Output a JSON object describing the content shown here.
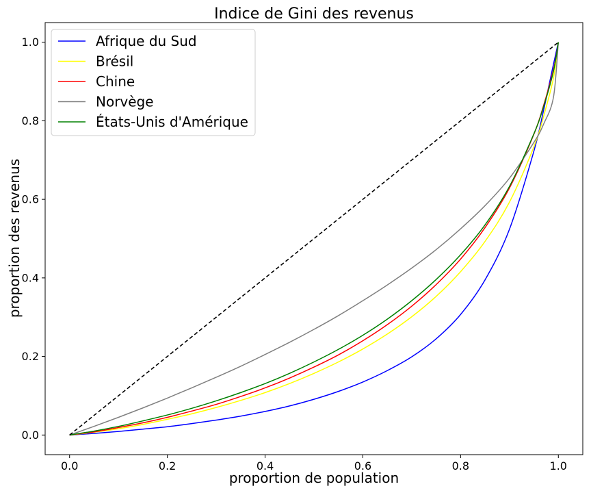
{
  "chart_data": {
    "type": "line",
    "title": "Indice de Gini des revenus",
    "xlabel": "proportion de population",
    "ylabel": "proportion des revenus",
    "xlim": [
      -0.05,
      1.05
    ],
    "ylim": [
      -0.05,
      1.05
    ],
    "xticks": [
      "0.0",
      "0.2",
      "0.4",
      "0.6",
      "0.8",
      "1.0"
    ],
    "yticks": [
      "0.0",
      "0.2",
      "0.4",
      "0.6",
      "0.8",
      "1.0"
    ],
    "grid": false,
    "legend_position": "top-left",
    "x": [
      0.0,
      0.05,
      0.1,
      0.15,
      0.2,
      0.25,
      0.3,
      0.35,
      0.4,
      0.45,
      0.5,
      0.55,
      0.6,
      0.65,
      0.7,
      0.75,
      0.8,
      0.85,
      0.9,
      0.95,
      0.97,
      0.99,
      1.0
    ],
    "series": [
      {
        "name": "Afrique du Sud",
        "color": "#0000ff",
        "values": [
          0.0,
          0.004,
          0.009,
          0.015,
          0.021,
          0.029,
          0.038,
          0.048,
          0.06,
          0.074,
          0.091,
          0.111,
          0.135,
          0.164,
          0.199,
          0.245,
          0.307,
          0.395,
          0.524,
          0.723,
          0.828,
          0.944,
          1.0
        ]
      },
      {
        "name": "Brésil",
        "color": "#ffff00",
        "values": [
          0.0,
          0.007,
          0.016,
          0.027,
          0.04,
          0.054,
          0.07,
          0.088,
          0.108,
          0.131,
          0.157,
          0.186,
          0.219,
          0.257,
          0.301,
          0.353,
          0.416,
          0.493,
          0.593,
          0.734,
          0.812,
          0.909,
          1.0
        ]
      },
      {
        "name": "Chine",
        "color": "#ff0000",
        "values": [
          0.0,
          0.008,
          0.019,
          0.031,
          0.045,
          0.061,
          0.078,
          0.098,
          0.12,
          0.145,
          0.173,
          0.204,
          0.24,
          0.281,
          0.328,
          0.383,
          0.448,
          0.528,
          0.629,
          0.766,
          0.84,
          0.93,
          1.0
        ]
      },
      {
        "name": "Norvège",
        "color": "#808080",
        "values": [
          0.0,
          0.022,
          0.045,
          0.069,
          0.094,
          0.12,
          0.147,
          0.175,
          0.205,
          0.236,
          0.269,
          0.304,
          0.342,
          0.382,
          0.425,
          0.472,
          0.525,
          0.584,
          0.654,
          0.745,
          0.792,
          0.86,
          1.0
        ]
      },
      {
        "name": "États-Unis d'Amérique",
        "color": "#008000",
        "values": [
          0.0,
          0.01,
          0.022,
          0.036,
          0.051,
          0.068,
          0.087,
          0.108,
          0.131,
          0.157,
          0.186,
          0.218,
          0.254,
          0.295,
          0.342,
          0.396,
          0.459,
          0.535,
          0.633,
          0.767,
          0.837,
          0.926,
          1.0
        ]
      },
      {
        "name": "",
        "color": "#000000",
        "dashed": true,
        "values": [
          0.0,
          0.05,
          0.1,
          0.15,
          0.2,
          0.25,
          0.3,
          0.35,
          0.4,
          0.45,
          0.5,
          0.55,
          0.6,
          0.65,
          0.7,
          0.75,
          0.8,
          0.85,
          0.9,
          0.95,
          0.97,
          0.99,
          1.0
        ]
      }
    ]
  }
}
